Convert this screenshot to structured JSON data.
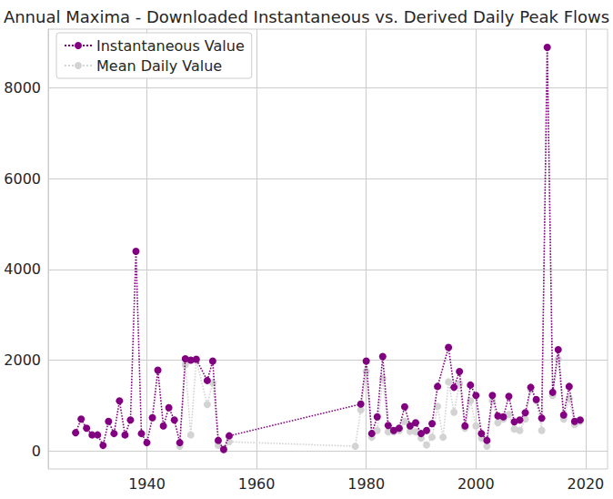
{
  "chart_data": {
    "type": "line",
    "title": "Annual Maxima - Downloaded Instantaneous vs. Derived Daily Peak Flows",
    "xlim": [
      1922,
      2024
    ],
    "xticks": [
      1940,
      1960,
      1980,
      2000,
      2020
    ],
    "ylim": [
      -400,
      9300
    ],
    "yticks": [
      0,
      2000,
      4000,
      6000,
      8000
    ],
    "grid": true,
    "legend": "upper left",
    "marker": "circle",
    "line_style": "dotted",
    "series": [
      {
        "name": "Instantaneous Value",
        "color": "#800080",
        "x": [
          1927,
          1928,
          1929,
          1930,
          1931,
          1932,
          1933,
          1934,
          1935,
          1936,
          1937,
          1938,
          1939,
          1940,
          1941,
          1942,
          1943,
          1944,
          1945,
          1946,
          1947,
          1948,
          1949,
          1951,
          1952,
          1953,
          1954,
          1955,
          1979,
          1980,
          1981,
          1982,
          1983,
          1984,
          1985,
          1986,
          1987,
          1988,
          1989,
          1990,
          1991,
          1992,
          1993,
          1995,
          1996,
          1997,
          1998,
          1999,
          2000,
          2001,
          2002,
          2003,
          2004,
          2005,
          2006,
          2007,
          2008,
          2009,
          2010,
          2011,
          2012,
          2013,
          2014,
          2015,
          2016,
          2017,
          2018,
          2019
        ],
        "values": [
          400,
          700,
          500,
          350,
          350,
          120,
          650,
          380,
          1100,
          350,
          680,
          4400,
          380,
          180,
          730,
          1780,
          550,
          950,
          680,
          180,
          2030,
          2000,
          2020,
          1550,
          1980,
          230,
          30,
          330,
          1030,
          1980,
          380,
          750,
          2080,
          560,
          450,
          500,
          970,
          550,
          620,
          380,
          450,
          600,
          1420,
          2280,
          1400,
          1750,
          550,
          1450,
          1220,
          380,
          230,
          1220,
          770,
          750,
          1200,
          640,
          680,
          840,
          1400,
          1130,
          720,
          8900,
          1290,
          2230,
          790,
          1420,
          650,
          680
        ]
      },
      {
        "name": "Mean Daily Value",
        "color": "#d3d3d3",
        "x": [
          1946,
          1947,
          1948,
          1949,
          1951,
          1952,
          1953,
          1954,
          1955,
          1978,
          1979,
          1980,
          1981,
          1982,
          1983,
          1984,
          1985,
          1986,
          1987,
          1988,
          1989,
          1990,
          1991,
          1992,
          1993,
          1994,
          1995,
          1996,
          1997,
          1998,
          1999,
          2000,
          2001,
          2002,
          2003,
          2004,
          2005,
          2006,
          2007,
          2008,
          2009,
          2010,
          2011,
          2012,
          2013,
          2014,
          2015,
          2016,
          2017,
          2018,
          2019
        ],
        "values": [
          100,
          1900,
          350,
          2000,
          1020,
          1500,
          120,
          20,
          200,
          100,
          900,
          1750,
          300,
          450,
          1600,
          420,
          420,
          450,
          650,
          430,
          420,
          280,
          130,
          300,
          980,
          300,
          1520,
          850,
          1480,
          500,
          1100,
          550,
          280,
          100,
          1100,
          620,
          700,
          800,
          480,
          450,
          700,
          1350,
          1100,
          450,
          8900,
          1220,
          2020,
          700,
          1150,
          580,
          650
        ]
      }
    ]
  }
}
